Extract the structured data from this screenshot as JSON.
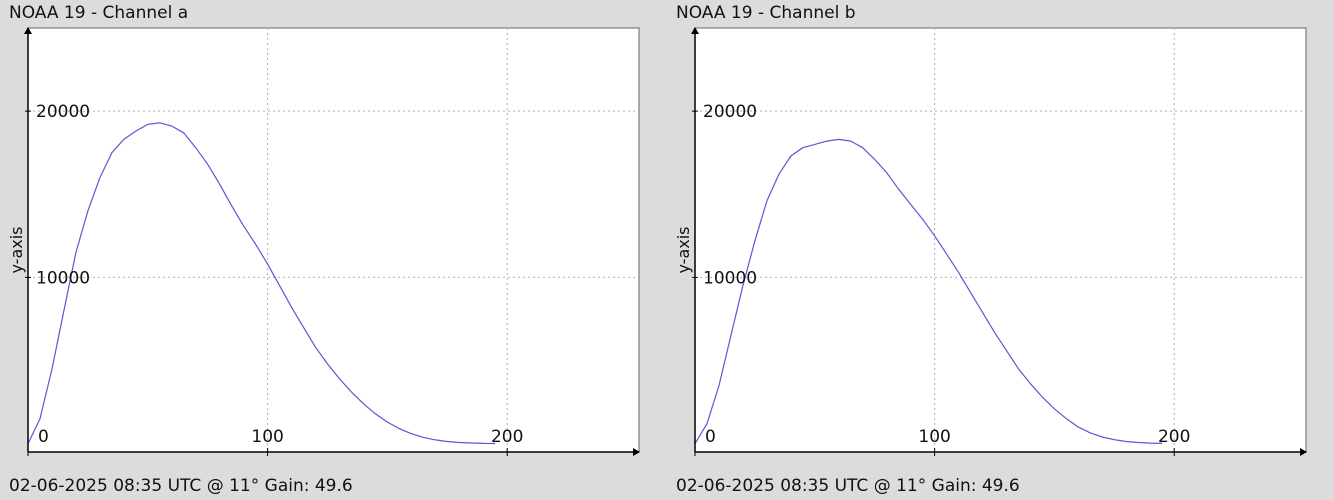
{
  "charts": [
    {
      "title": "NOAA 19 - Channel a",
      "footer": "02-06-2025 08:35 UTC @ 11° Gain: 49.6"
    },
    {
      "title": "NOAA 19 - Channel b",
      "footer": "02-06-2025 08:35 UTC @ 11° Gain: 49.6"
    }
  ],
  "chart_data": [
    {
      "type": "line",
      "title": "NOAA 19 - Channel a",
      "xlabel": "",
      "ylabel": "y-axis",
      "xlim": [
        0,
        255
      ],
      "ylim": [
        -500,
        25000
      ],
      "x_ticks": [
        0,
        100,
        200
      ],
      "y_ticks": [
        10000,
        20000
      ],
      "x_tick_labels": [
        "0",
        "100",
        "200"
      ],
      "y_tick_labels": [
        "10000",
        "20000"
      ],
      "grid": true,
      "line_color": "#5858d8",
      "series": [
        {
          "x": [
            0,
            5,
            10,
            15,
            20,
            25,
            30,
            35,
            40,
            45,
            50,
            55,
            60,
            65,
            70,
            75,
            80,
            85,
            90,
            95,
            100,
            105,
            110,
            115,
            120,
            125,
            130,
            135,
            140,
            145,
            150,
            155,
            160,
            165,
            170,
            175,
            180,
            185,
            190,
            195
          ],
          "y": [
            0,
            1500,
            4500,
            8000,
            11500,
            14000,
            16000,
            17500,
            18300,
            18800,
            19200,
            19300,
            19100,
            18700,
            17800,
            16800,
            15600,
            14300,
            13100,
            12000,
            10800,
            9500,
            8200,
            7000,
            5800,
            4800,
            3900,
            3100,
            2400,
            1800,
            1300,
            900,
            600,
            380,
            230,
            130,
            70,
            40,
            20,
            10
          ]
        }
      ]
    },
    {
      "type": "line",
      "title": "NOAA 19 - Channel b",
      "xlabel": "",
      "ylabel": "y-axis",
      "xlim": [
        0,
        255
      ],
      "ylim": [
        -500,
        25000
      ],
      "x_ticks": [
        0,
        100,
        200
      ],
      "y_ticks": [
        10000,
        20000
      ],
      "x_tick_labels": [
        "0",
        "100",
        "200"
      ],
      "y_tick_labels": [
        "10000",
        "20000"
      ],
      "grid": true,
      "line_color": "#5858d8",
      "series": [
        {
          "x": [
            0,
            5,
            10,
            15,
            20,
            25,
            30,
            35,
            40,
            45,
            50,
            55,
            60,
            65,
            70,
            75,
            80,
            85,
            90,
            95,
            100,
            105,
            110,
            115,
            120,
            125,
            130,
            135,
            140,
            145,
            150,
            155,
            160,
            165,
            170,
            175,
            180,
            185,
            190,
            195
          ],
          "y": [
            0,
            1200,
            3500,
            6500,
            9500,
            12200,
            14600,
            16200,
            17300,
            17800,
            18000,
            18200,
            18300,
            18200,
            17800,
            17100,
            16300,
            15300,
            14400,
            13500,
            12500,
            11400,
            10300,
            9100,
            7900,
            6700,
            5600,
            4500,
            3600,
            2800,
            2100,
            1500,
            1000,
            650,
            400,
            240,
            130,
            70,
            35,
            15
          ]
        }
      ]
    }
  ]
}
